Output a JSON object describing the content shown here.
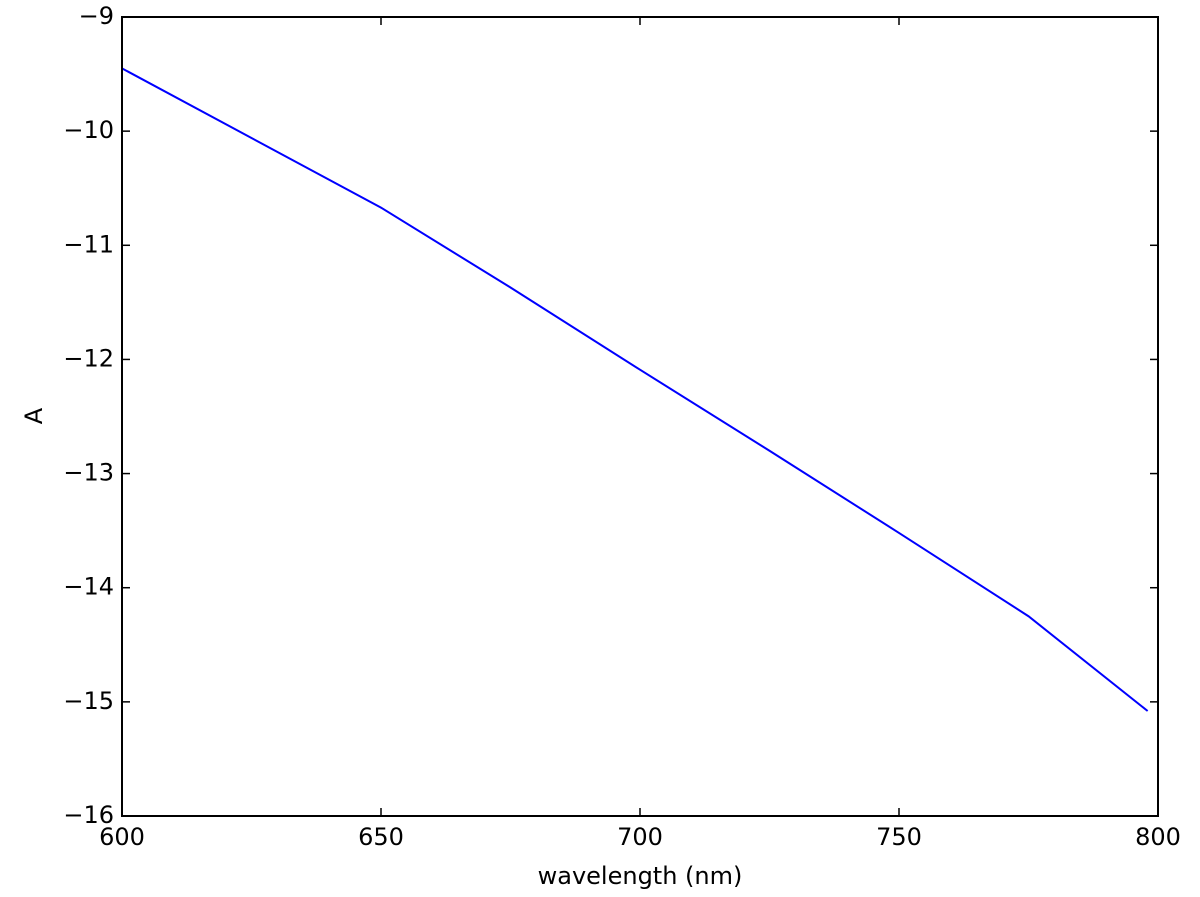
{
  "chart_data": {
    "type": "line",
    "x_label": "wavelength (nm)",
    "y_label": "A",
    "x": [
      600,
      625,
      650,
      675,
      700,
      725,
      750,
      775,
      798
    ],
    "series": [
      {
        "color": "#0000ff",
        "values": [
          -9.45,
          -10.06,
          -10.67,
          -11.37,
          -12.09,
          -12.8,
          -13.52,
          -14.25,
          -15.08
        ]
      }
    ],
    "xlim": [
      600,
      800
    ],
    "xticks": [
      600,
      650,
      700,
      750,
      800
    ],
    "ylim": [
      -16,
      -9
    ],
    "yticks": [
      {
        "value": -16,
        "label": "−16"
      },
      {
        "value": -15,
        "label": "−15"
      },
      {
        "value": -14,
        "label": "−14"
      },
      {
        "value": -13,
        "label": "−13"
      },
      {
        "value": -12,
        "label": "−12"
      },
      {
        "value": -11,
        "label": "−11"
      },
      {
        "value": -10,
        "label": "−10"
      },
      {
        "value": -9,
        "label": "−9"
      }
    ],
    "grid": false
  }
}
